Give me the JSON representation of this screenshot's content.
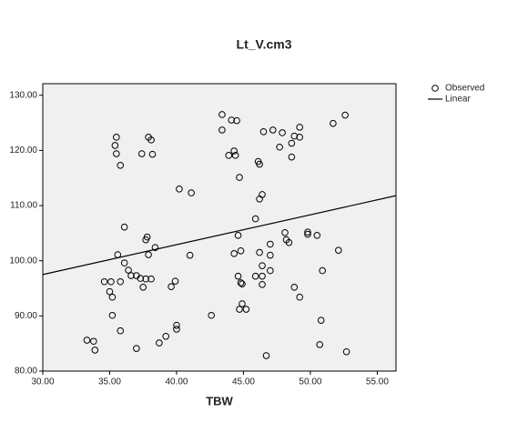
{
  "chart_data": {
    "type": "scatter",
    "title": "Lt_V.cm3",
    "x_label": "TBW",
    "xlim": [
      30,
      56.4
    ],
    "ylim": [
      80,
      132.1
    ],
    "xticks": [
      {
        "value": 30,
        "label": "30.00"
      },
      {
        "value": 35,
        "label": "35.00"
      },
      {
        "value": 40,
        "label": "40.00"
      },
      {
        "value": 45,
        "label": "45.00"
      },
      {
        "value": 50,
        "label": "50.00"
      },
      {
        "value": 55,
        "label": "55.00"
      }
    ],
    "yticks": [
      {
        "value": 80,
        "label": "80.00"
      },
      {
        "value": 90,
        "label": "90.00"
      },
      {
        "value": 100,
        "label": "100.00"
      },
      {
        "value": 110,
        "label": "110.00"
      },
      {
        "value": 120,
        "label": "120.00"
      },
      {
        "value": 130,
        "label": "130.00"
      }
    ],
    "background": "#f0f0f0",
    "series": [
      {
        "name": "Observed",
        "mark": "circle",
        "color": "#000000",
        "x": [
          35.5,
          35.4,
          35.5,
          35.8,
          37.9,
          38.1,
          37.4,
          38.2,
          36.1,
          35.6,
          35.8,
          36.1,
          36.4,
          36.6,
          37.0,
          37.3,
          38.1,
          37.7,
          35.1,
          34.6,
          35.0,
          35.2,
          35.2,
          37.5,
          37.7,
          37.8,
          38.4,
          37.9,
          33.3,
          33.8,
          33.9,
          35.8,
          37.0,
          38.7,
          39.2,
          40.0,
          40.0,
          42.6,
          40.2,
          41.1,
          41.0,
          39.6,
          39.9,
          43.4,
          44.1,
          44.5,
          43.4,
          44.3,
          43.9,
          44.4,
          44.7,
          46.1,
          46.2,
          46.5,
          47.2,
          47.9,
          47.7,
          48.6,
          48.8,
          49.2,
          49.2,
          48.6,
          51.7,
          52.6,
          46.4,
          46.2,
          45.9,
          44.6,
          44.8,
          44.3,
          46.2,
          47.0,
          47.0,
          46.4,
          45.9,
          46.4,
          47.0,
          44.6,
          46.4,
          44.8,
          44.9,
          44.9,
          44.7,
          45.2,
          46.7,
          48.1,
          48.2,
          48.4,
          49.8,
          49.8,
          50.5,
          50.9,
          52.1,
          48.8,
          49.2,
          50.8,
          50.7,
          52.7
        ],
        "values": [
          122.4,
          120.9,
          119.4,
          117.3,
          122.4,
          121.9,
          119.4,
          119.3,
          106.1,
          101.1,
          96.2,
          99.6,
          98.3,
          97.3,
          97.3,
          96.8,
          96.7,
          96.7,
          96.2,
          96.2,
          94.4,
          93.4,
          90.1,
          95.2,
          103.8,
          104.3,
          102.4,
          101.1,
          85.6,
          85.4,
          83.8,
          87.3,
          84.1,
          85.1,
          86.3,
          88.3,
          87.6,
          90.1,
          113.0,
          112.3,
          101.0,
          95.3,
          96.3,
          126.5,
          125.5,
          125.4,
          123.7,
          119.9,
          119.1,
          119.1,
          115.1,
          118.0,
          117.5,
          123.4,
          123.7,
          123.2,
          120.6,
          121.3,
          122.6,
          124.2,
          122.4,
          118.8,
          124.9,
          126.4,
          112.0,
          111.2,
          107.6,
          104.6,
          101.8,
          101.3,
          101.5,
          103.0,
          101.0,
          99.1,
          97.2,
          97.2,
          98.2,
          97.2,
          95.7,
          96.0,
          95.8,
          92.2,
          91.2,
          91.2,
          82.8,
          105.1,
          103.8,
          103.3,
          105.2,
          104.8,
          104.6,
          98.2,
          101.9,
          95.2,
          93.4,
          89.2,
          84.8,
          83.5
        ]
      },
      {
        "name": "Linear",
        "mark": "line",
        "color": "#000000",
        "x": [
          30,
          56.4
        ],
        "values": [
          97.5,
          111.8
        ]
      }
    ]
  }
}
